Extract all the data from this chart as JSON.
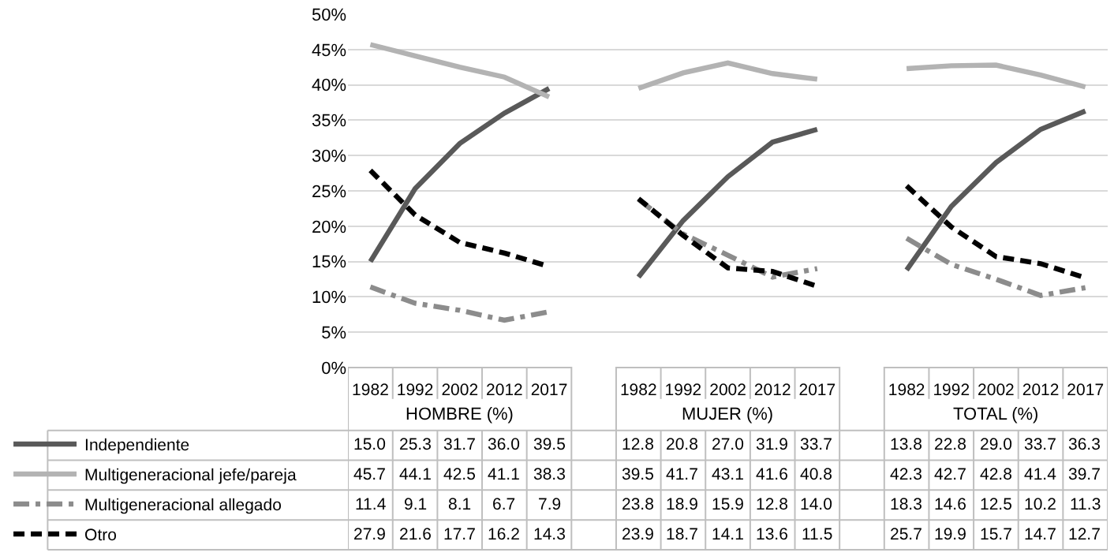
{
  "chart_data": {
    "type": "line",
    "categories": [
      "1982",
      "1992",
      "2002",
      "2012",
      "2017",
      null,
      "1982",
      "1992",
      "2002",
      "2012",
      "2017",
      null,
      "1982",
      "1992",
      "2002",
      "2012",
      "2017"
    ],
    "annotations": [
      "HOMBRE (%)",
      "MUJER (%)",
      "TOTAL (%)"
    ],
    "series": [
      {
        "name": "Independiente",
        "color": "#595959",
        "line_style": "solid",
        "values": [
          15.0,
          25.3,
          31.7,
          36.0,
          39.5,
          null,
          12.8,
          20.8,
          27.0,
          31.9,
          33.7,
          null,
          13.8,
          22.8,
          29.0,
          33.7,
          36.3
        ],
        "value_labels": [
          "15.0",
          "25.3",
          "31.7",
          "36.0",
          "39.5",
          null,
          "12.8",
          "20.8",
          "27.0",
          "31.9",
          "33.7",
          null,
          "13.8",
          "22.8",
          "29.0",
          "33.7",
          "36.3"
        ]
      },
      {
        "name": "Multigeneracional jefe/pareja",
        "color": "#b3b3b3",
        "line_style": "solid",
        "values": [
          45.7,
          44.1,
          42.5,
          41.1,
          38.3,
          null,
          39.5,
          41.7,
          43.1,
          41.6,
          40.8,
          null,
          42.3,
          42.7,
          42.8,
          41.4,
          39.7
        ],
        "value_labels": [
          "45.7",
          "44.1",
          "42.5",
          "41.1",
          "38.3",
          null,
          "39.5",
          "41.7",
          "43.1",
          "41.6",
          "40.8",
          null,
          "42.3",
          "42.7",
          "42.8",
          "41.4",
          "39.7"
        ]
      },
      {
        "name": "Multigeneracional allegado",
        "color": "#8c8c8c",
        "line_style": "dashdot",
        "values": [
          11.4,
          9.1,
          8.1,
          6.7,
          7.9,
          null,
          23.8,
          18.9,
          15.9,
          12.8,
          14.0,
          null,
          18.3,
          14.6,
          12.5,
          10.2,
          11.3
        ],
        "value_labels": [
          "11.4",
          "9.1",
          "8.1",
          "6.7",
          "7.9",
          null,
          "23.8",
          "18.9",
          "15.9",
          "12.8",
          "14.0",
          null,
          "18.3",
          "14.6",
          "12.5",
          "10.2",
          "11.3"
        ]
      },
      {
        "name": "Otro",
        "color": "#000000",
        "line_style": "dashed",
        "values": [
          27.9,
          21.6,
          17.7,
          16.2,
          14.3,
          null,
          23.9,
          18.7,
          14.1,
          13.6,
          11.5,
          null,
          25.7,
          19.9,
          15.7,
          14.7,
          12.7
        ],
        "value_labels": [
          "27.9",
          "21.6",
          "17.7",
          "16.2",
          "14.3",
          null,
          "23.9",
          "18.7",
          "14.1",
          "13.6",
          "11.5",
          null,
          "25.7",
          "19.9",
          "15.7",
          "14.7",
          "12.7"
        ]
      }
    ],
    "ylim": [
      0,
      50
    ],
    "yticks": [
      {
        "value": 0,
        "label": "0%"
      },
      {
        "value": 5,
        "label": "5%"
      },
      {
        "value": 10,
        "label": "10%"
      },
      {
        "value": 15,
        "label": "15%"
      },
      {
        "value": 20,
        "label": "20%"
      },
      {
        "value": 25,
        "label": "25%"
      },
      {
        "value": 30,
        "label": "30%"
      },
      {
        "value": 35,
        "label": "35%"
      },
      {
        "value": 40,
        "label": "40%"
      },
      {
        "value": 45,
        "label": "45%"
      },
      {
        "value": 50,
        "label": "50%"
      }
    ],
    "grid": "y",
    "legend": "bottom left",
    "marker": "none"
  }
}
